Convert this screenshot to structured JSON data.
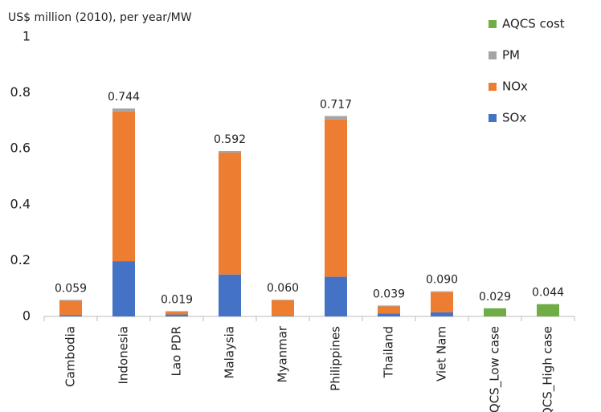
{
  "chart_data": {
    "type": "stacked_bar",
    "y_axis_label": "US$ million (2010), per year/MW",
    "categories": [
      "Cambodia",
      "Indonesia",
      "Lao PDR",
      "Malaysia",
      "Myanmar",
      "Philippines",
      "Thailand",
      "Viet Nam",
      "AQCS_Low case",
      "AQCS_High case"
    ],
    "series": [
      {
        "name": "SOx",
        "color": "#4472c4",
        "values": [
          0.005,
          0.198,
          0.007,
          0.15,
          0.002,
          0.142,
          0.01,
          0.015,
          null,
          null
        ]
      },
      {
        "name": "NOx",
        "color": "#ed7d31",
        "values": [
          0.051,
          0.535,
          0.01,
          0.436,
          0.056,
          0.563,
          0.026,
          0.072,
          null,
          null
        ]
      },
      {
        "name": "PM",
        "color": "#a5a5a5",
        "values": [
          0.003,
          0.011,
          0.002,
          0.006,
          0.002,
          0.012,
          0.003,
          0.003,
          null,
          null
        ]
      },
      {
        "name": "AQCS cost",
        "color": "#70ad47",
        "values": [
          null,
          null,
          null,
          null,
          null,
          null,
          null,
          null,
          0.029,
          0.044
        ]
      }
    ],
    "totals": [
      0.059,
      0.744,
      0.019,
      0.592,
      0.06,
      0.717,
      0.039,
      0.09,
      0.029,
      0.044
    ],
    "total_labels": [
      "0.059",
      "0.744",
      "0.019",
      "0.592",
      "0.060",
      "0.717",
      "0.039",
      "0.090",
      "0.029",
      "0.044"
    ],
    "ylim": [
      0,
      1
    ],
    "yticks": [
      0,
      0.2,
      0.4,
      0.6,
      0.8,
      1
    ],
    "grid": false,
    "legend": "top-right"
  }
}
